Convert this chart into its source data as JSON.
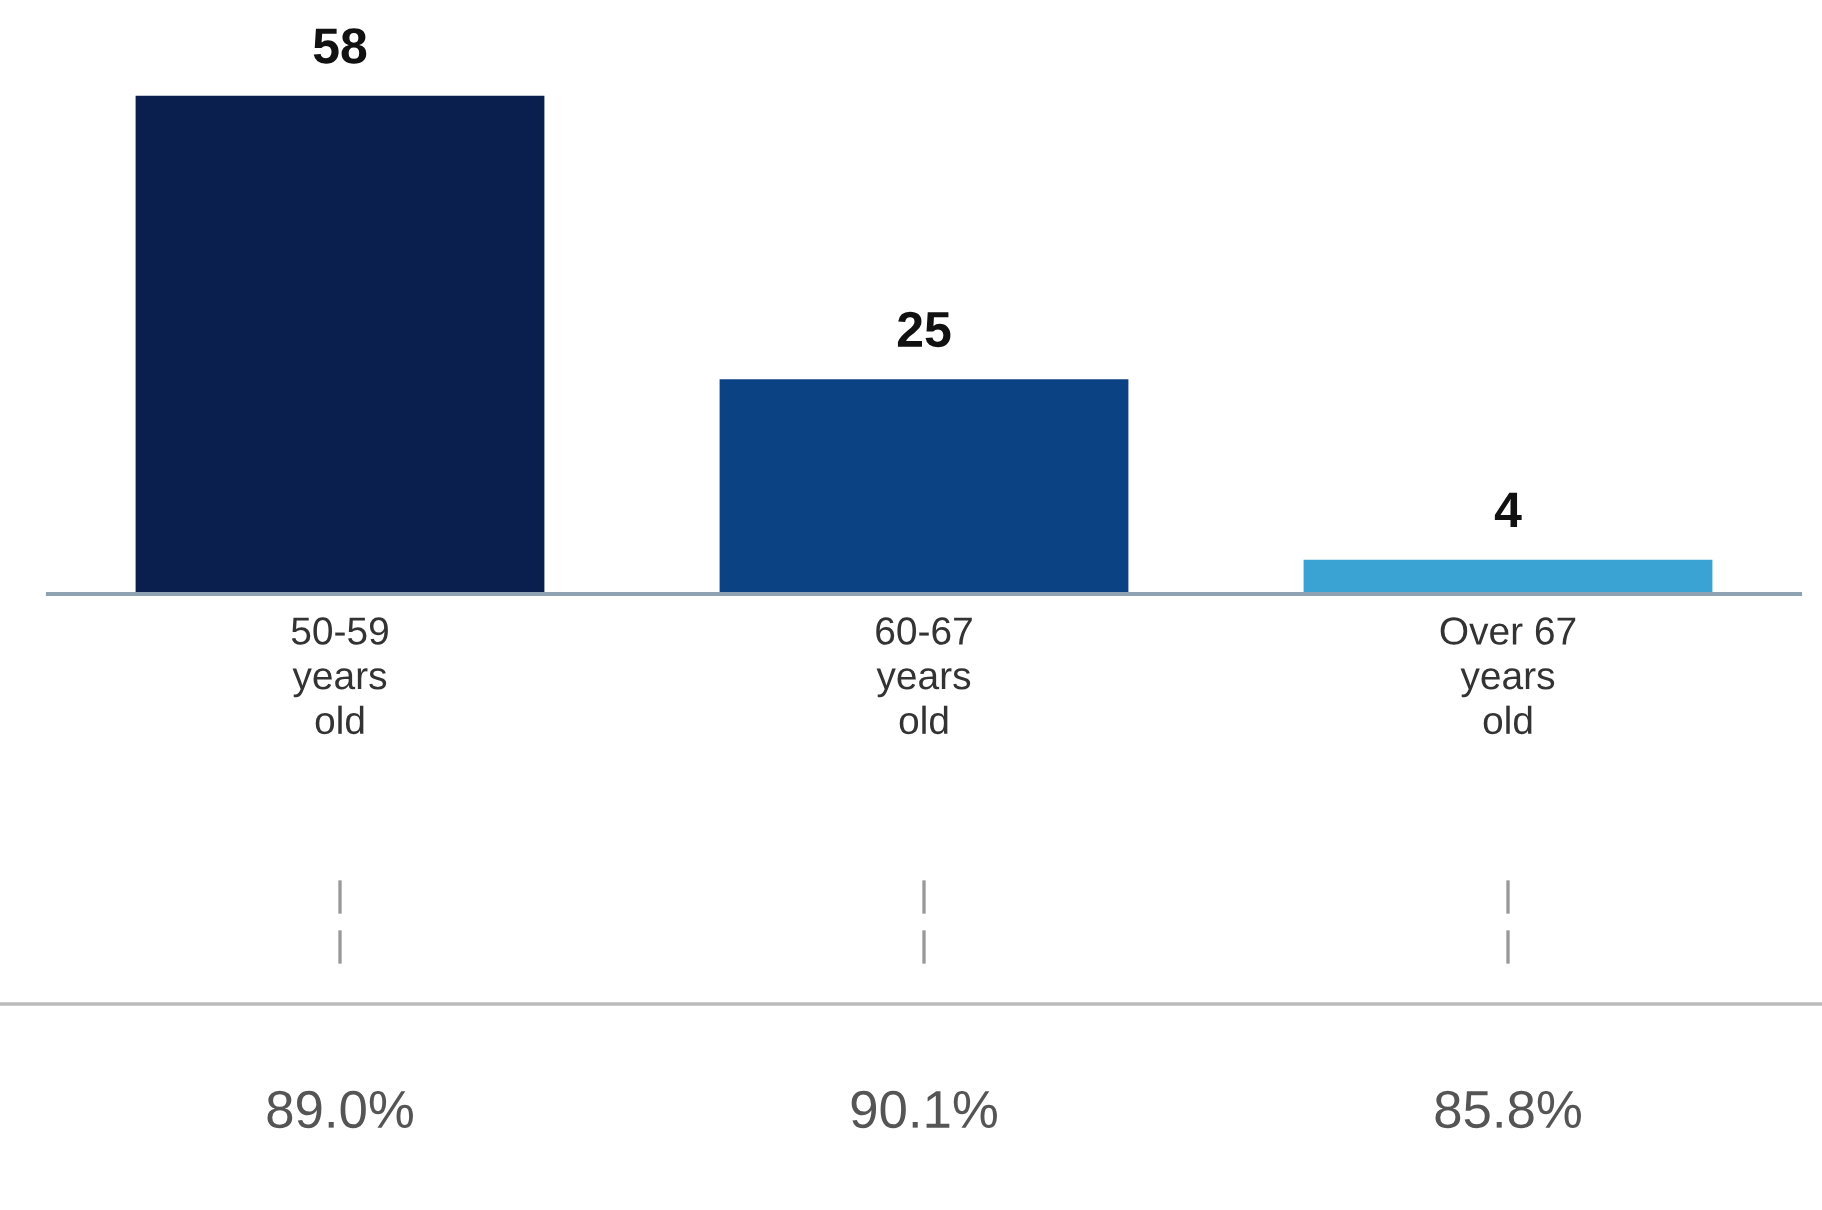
{
  "chart_data": {
    "type": "bar",
    "categories": [
      "50-59\nyears\nold",
      "60-67\nyears\nold",
      "Over 67\nyears\nold"
    ],
    "values": [
      58,
      25,
      4
    ],
    "colors": [
      "#0b1f4f",
      "#0b4283",
      "#3aa3d4"
    ],
    "data_labels": true,
    "annotations": [
      "89.0%",
      "90.1%",
      "85.8%"
    ]
  }
}
